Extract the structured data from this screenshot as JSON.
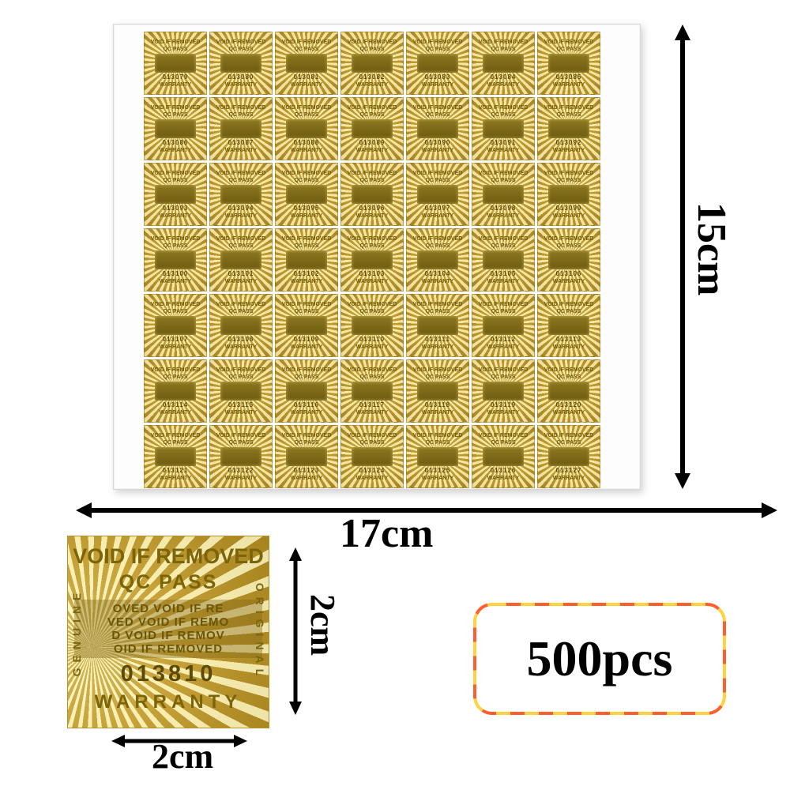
{
  "sheet": {
    "rows": 7,
    "cols": 7,
    "sticker_line1": "VOID IF REMOVED",
    "sticker_line2": "QC PASS",
    "sticker_warranty": "WARRANTY",
    "serials": [
      "013079",
      "013080",
      "013081",
      "013082",
      "013083",
      "013084",
      "013085",
      "013086",
      "013087",
      "013088",
      "013089",
      "013090",
      "013091",
      "013092",
      "013093",
      "013094",
      "013095",
      "013096",
      "013097",
      "013098",
      "013099",
      "013100",
      "013101",
      "013102",
      "013103",
      "013104",
      "013105",
      "013106",
      "013107",
      "013108",
      "013109",
      "013110",
      "013111",
      "013112",
      "013113",
      "013114",
      "013115",
      "013116",
      "013117",
      "013118",
      "013119",
      "013120",
      "013121",
      "013122",
      "013123",
      "013124",
      "013125",
      "013126",
      "013127"
    ]
  },
  "big_sticker": {
    "line1": "VOID IF REMOVED",
    "line2": "QC PASS",
    "micro_lines": [
      "OVED VOID IF RE",
      "VED VOID IF REMO",
      "D VOID IF REMOV",
      "OID IF REMOVED"
    ],
    "serial": "013810",
    "warranty": "WARRANTY",
    "side_left": "GENUINE",
    "side_right": "ORIGINAL"
  },
  "annotations": {
    "sheet_height": "15cm",
    "sheet_width": "17cm",
    "sticker_height": "2cm",
    "sticker_width": "2cm",
    "quantity": "500pcs"
  },
  "colors": {
    "gold_light": "#ffef9e",
    "gold_mid": "#e2bb4a",
    "gold_deep": "#a8851f",
    "text_olive": "#6f5a0a",
    "arrow_black": "#000000",
    "dash_yellow": "#ffd23f",
    "dash_red": "#ff5f2e"
  }
}
